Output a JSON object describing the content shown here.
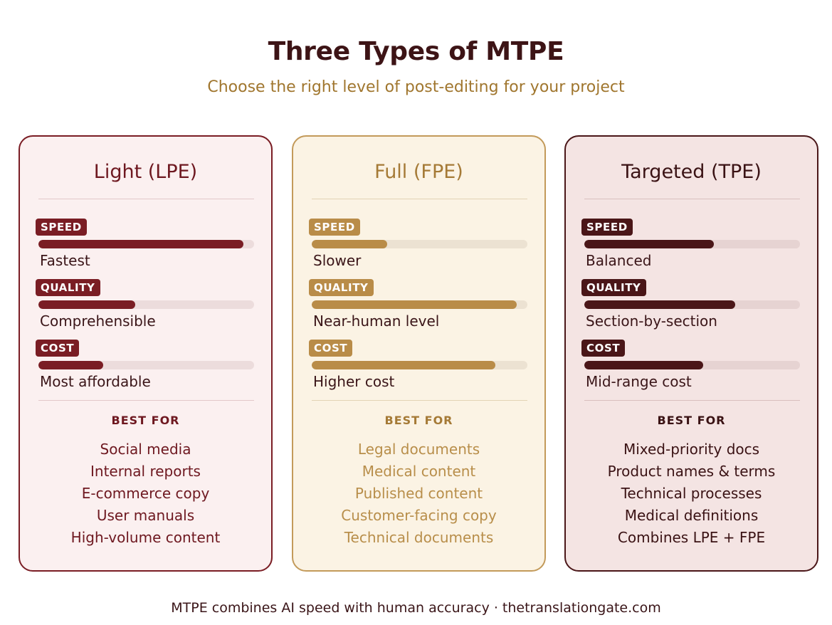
{
  "header": {
    "title": "Three Types of MTPE",
    "subtitle": "Choose the right level of post-editing for your project"
  },
  "colors": {
    "lpe_accent": "#7a1d24",
    "fpe_accent": "#b98c48",
    "tpe_accent": "#4a1618",
    "subtitle": "#a0762e"
  },
  "cards": [
    {
      "title": "Light (LPE)",
      "speed": {
        "label": "SPEED",
        "level": 0.95,
        "text": "Fastest"
      },
      "quality": {
        "label": "QUALITY",
        "level": 0.45,
        "text": "Comprehensible"
      },
      "cost": {
        "label": "COST",
        "level": 0.3,
        "text": "Most affordable"
      },
      "best_for_title": "BEST FOR",
      "best_for": [
        "Social media",
        "Internal reports",
        "E-commerce copy",
        "User manuals",
        "High-volume content"
      ]
    },
    {
      "title": "Full (FPE)",
      "speed": {
        "label": "SPEED",
        "level": 0.35,
        "text": "Slower"
      },
      "quality": {
        "label": "QUALITY",
        "level": 0.95,
        "text": "Near-human level"
      },
      "cost": {
        "label": "COST",
        "level": 0.85,
        "text": "Higher cost"
      },
      "best_for_title": "BEST FOR",
      "best_for": [
        "Legal documents",
        "Medical content",
        "Published content",
        "Customer-facing copy",
        "Technical documents"
      ]
    },
    {
      "title": "Targeted (TPE)",
      "speed": {
        "label": "SPEED",
        "level": 0.6,
        "text": "Balanced"
      },
      "quality": {
        "label": "QUALITY",
        "level": 0.7,
        "text": "Section-by-section"
      },
      "cost": {
        "label": "COST",
        "level": 0.55,
        "text": "Mid-range cost"
      },
      "best_for_title": "BEST FOR",
      "best_for": [
        "Mixed-priority docs",
        "Product names & terms",
        "Technical processes",
        "Medical definitions",
        "Combines LPE + FPE"
      ]
    }
  ],
  "footer": {
    "text": "MTPE combines AI speed with human accuracy · thetranslationgate.com"
  }
}
